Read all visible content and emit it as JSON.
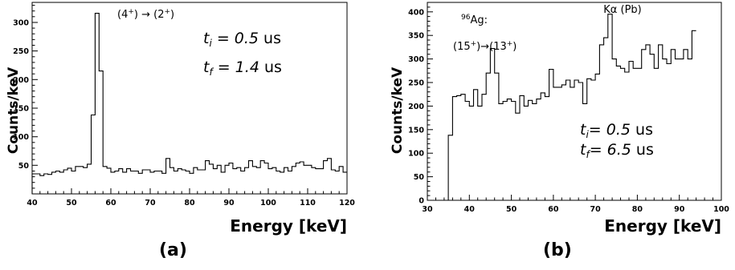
{
  "panel_labels": [
    "(a)",
    "(b)"
  ],
  "chart_data": [
    {
      "type": "histogram",
      "xlabel": "Energy [keV]",
      "ylabel": "Counts/keV",
      "xlim": [
        40,
        120
      ],
      "ylim": [
        0,
        335
      ],
      "xticks": [
        40,
        50,
        60,
        70,
        80,
        90,
        100,
        110,
        120
      ],
      "yticks": [
        50,
        100,
        150,
        200,
        250,
        300
      ],
      "bin_width": 1,
      "bin_start": 40,
      "counts": [
        35,
        35,
        32,
        35,
        34,
        38,
        40,
        38,
        42,
        45,
        40,
        48,
        48,
        46,
        52,
        138,
        316,
        215,
        48,
        45,
        38,
        40,
        44,
        38,
        44,
        40,
        40,
        36,
        42,
        42,
        38,
        40,
        40,
        36,
        62,
        46,
        40,
        44,
        42,
        40,
        36,
        46,
        42,
        42,
        58,
        52,
        44,
        50,
        38,
        50,
        54,
        44,
        46,
        40,
        46,
        58,
        48,
        46,
        58,
        54,
        44,
        46,
        40,
        38,
        46,
        40,
        48,
        54,
        56,
        50,
        50,
        46,
        44,
        44,
        58,
        62,
        42,
        40,
        48,
        38
      ],
      "annotations": {
        "peak": {
          "parts": [
            "(4",
            "+",
            ") → (2",
            "+",
            ")"
          ],
          "at": [
            56,
            316
          ]
        },
        "t_i": {
          "symbol": "t",
          "sub": "i",
          "eq": " = 0.5",
          "unit": " us"
        },
        "t_f": {
          "symbol": "t",
          "sub": "f",
          "eq": " = 1.4",
          "unit": " us"
        }
      }
    },
    {
      "type": "histogram",
      "xlabel": "Energy [keV]",
      "ylabel": "Counts/keV",
      "xlim": [
        30,
        100
      ],
      "ylim": [
        0,
        420
      ],
      "xticks": [
        30,
        40,
        50,
        60,
        70,
        80,
        90,
        100
      ],
      "yticks": [
        0,
        50,
        100,
        150,
        200,
        250,
        300,
        350,
        400
      ],
      "bin_width": 1,
      "bin_start": 35,
      "counts": [
        138,
        220,
        222,
        225,
        210,
        200,
        235,
        200,
        225,
        270,
        322,
        270,
        205,
        210,
        215,
        210,
        185,
        222,
        200,
        212,
        205,
        215,
        228,
        220,
        278,
        240,
        240,
        245,
        255,
        240,
        255,
        250,
        205,
        258,
        255,
        268,
        330,
        345,
        395,
        300,
        285,
        280,
        272,
        295,
        280,
        280,
        320,
        330,
        310,
        280,
        330,
        300,
        290,
        320,
        300,
        300,
        320,
        300,
        360
      ]
    }
  ],
  "panel_b_annotations": {
    "ag_label": {
      "sup": "96",
      "text": "Ag:"
    },
    "transition": {
      "parts": [
        "(15",
        "+",
        ")→(13",
        "+",
        ")"
      ]
    },
    "kalpha": "Kα (Pb)",
    "t_i": {
      "symbol": "t",
      "sub": "i",
      "eq": "= 0.5",
      "unit": "  us"
    },
    "t_f": {
      "symbol": "t",
      "sub": "f",
      "eq": "= 6.5",
      "unit": "  us"
    }
  }
}
